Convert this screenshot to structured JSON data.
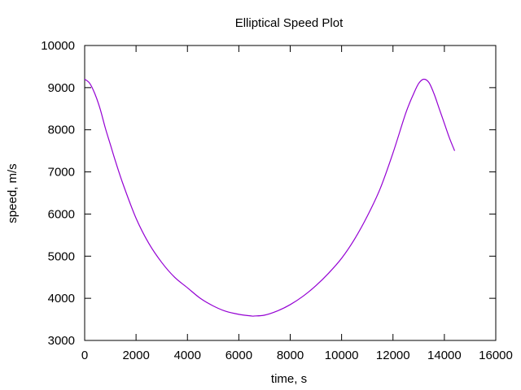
{
  "chart_data": {
    "type": "line",
    "title": "Elliptical Speed Plot",
    "xlabel": "time, s",
    "ylabel": "speed, m/s",
    "xlim": [
      0,
      16000
    ],
    "ylim": [
      3000,
      10000
    ],
    "x_ticks": [
      0,
      2000,
      4000,
      6000,
      8000,
      10000,
      12000,
      14000,
      16000
    ],
    "y_ticks": [
      3000,
      4000,
      5000,
      6000,
      7000,
      8000,
      9000,
      10000
    ],
    "grid": false,
    "series": [
      {
        "color": "#9400d3",
        "x": [
          0,
          200,
          400,
          600,
          800,
          1000,
          1200,
          1500,
          2000,
          2500,
          3000,
          3500,
          4000,
          4500,
          5000,
          5500,
          6000,
          6500,
          6600,
          7000,
          7500,
          8000,
          8500,
          9000,
          9500,
          10000,
          10500,
          11000,
          11500,
          12000,
          12500,
          12800,
          13000,
          13200,
          13400,
          13600,
          13800,
          14000,
          14200,
          14400
        ],
        "y": [
          9200,
          9100,
          8850,
          8500,
          8050,
          7650,
          7250,
          6700,
          5900,
          5300,
          4850,
          4500,
          4250,
          4000,
          3820,
          3690,
          3620,
          3580,
          3580,
          3600,
          3700,
          3850,
          4050,
          4300,
          4600,
          4950,
          5400,
          5950,
          6600,
          7450,
          8400,
          8850,
          9100,
          9200,
          9120,
          8850,
          8500,
          8150,
          7800,
          7500
        ]
      }
    ]
  }
}
